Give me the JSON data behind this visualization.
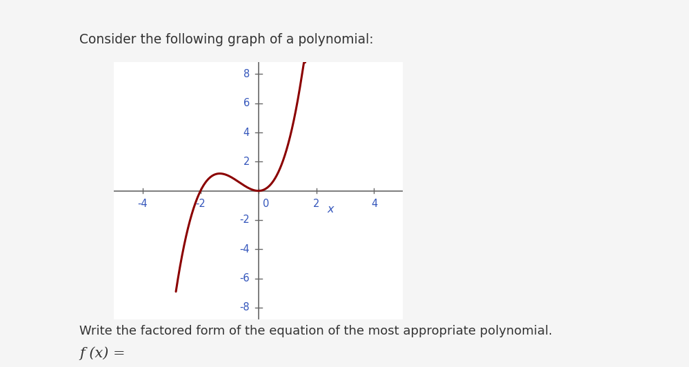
{
  "title": "Consider the following graph of a polynomial:",
  "footer_text": "Write the factored form of the equation of the most appropriate polynomial.",
  "footer_formula": "f (x) =",
  "xlim": [
    -5,
    5
  ],
  "ylim": [
    -8.8,
    8.8
  ],
  "xticks": [
    -4,
    -2,
    0,
    2,
    4
  ],
  "yticks": [
    -8,
    -6,
    -4,
    -2,
    2,
    4,
    6,
    8
  ],
  "curve_color": "#8B0000",
  "curve_linewidth": 2.2,
  "axis_color": "#666666",
  "tick_label_color": "#3355bb",
  "xlabel": "x",
  "xlabel_color": "#3355bb",
  "background_color": "#f5f5f5",
  "plot_bg": "#ffffff",
  "title_fontsize": 13.5,
  "tick_fontsize": 10.5,
  "footer_fontsize": 13,
  "formula_fontsize": 15
}
